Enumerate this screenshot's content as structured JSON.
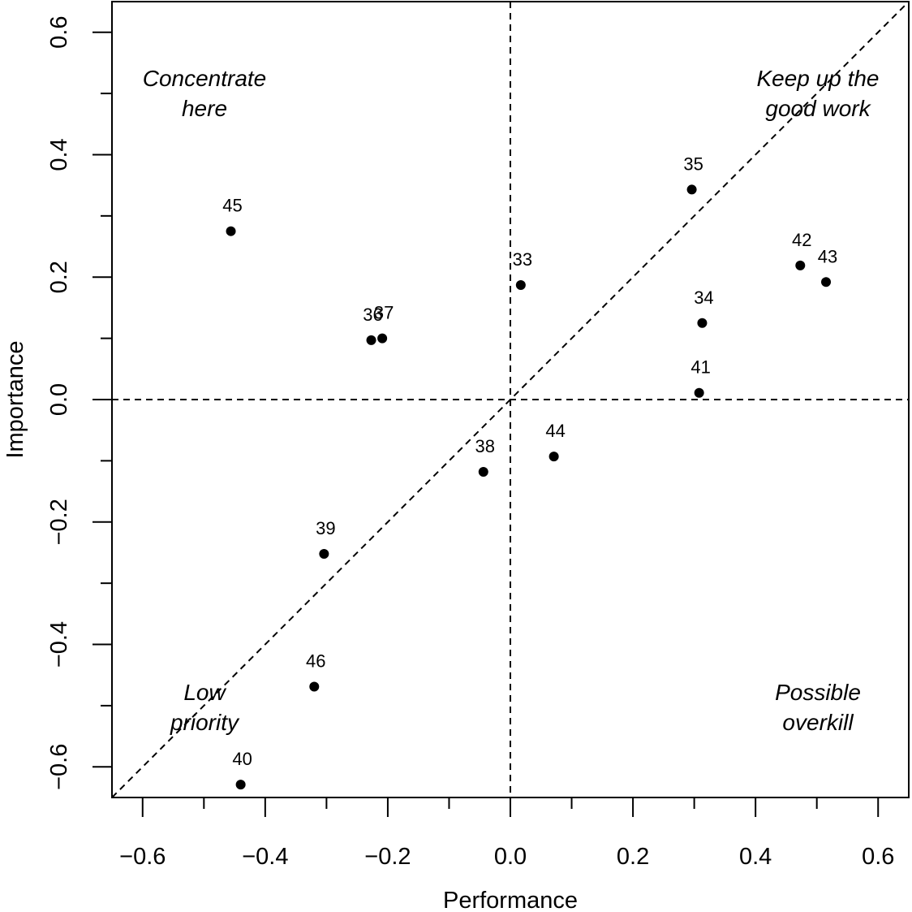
{
  "chart_data": {
    "type": "scatter",
    "x_label": "Performance",
    "y_label": "Importance",
    "point_labels": [
      "33",
      "34",
      "35",
      "36",
      "37",
      "38",
      "39",
      "40",
      "41",
      "42",
      "43",
      "44",
      "45",
      "46"
    ],
    "x": [
      0.017,
      0.313,
      0.296,
      -0.227,
      -0.209,
      -0.044,
      -0.304,
      -0.44,
      0.308,
      0.473,
      0.515,
      0.071,
      -0.456,
      -0.32
    ],
    "values": [
      0.187,
      0.125,
      0.343,
      0.097,
      0.1,
      -0.118,
      -0.252,
      -0.629,
      0.011,
      0.219,
      0.192,
      -0.093,
      0.275,
      -0.469
    ],
    "color": "#000000",
    "xlim": [
      -0.65,
      0.65
    ],
    "ylim": [
      -0.65,
      0.65
    ],
    "xticks": [
      {
        "value": -0.6,
        "label": "−0.6"
      },
      {
        "value": -0.4,
        "label": "−0.4"
      },
      {
        "value": -0.2,
        "label": "−0.2"
      },
      {
        "value": 0,
        "label": "0.0"
      },
      0.2,
      0.4,
      0.6
    ],
    "yticks": [
      {
        "value": -0.6,
        "label": "−0.6"
      },
      {
        "value": -0.4,
        "label": "−0.4"
      },
      {
        "value": -0.2,
        "label": "−0.2"
      },
      {
        "value": 0,
        "label": "0.0"
      },
      0.2,
      0.4,
      0.6
    ],
    "xminor_ticks": [
      -0.5,
      -0.3,
      -0.1,
      0.1,
      0.3,
      0.5
    ],
    "yminor_ticks": [
      -0.5,
      -0.3,
      -0.1,
      0.1,
      0.3,
      0.5
    ],
    "hline": 0,
    "vline": 0,
    "diagonal": true,
    "quadrants": {
      "top_left": [
        "Concentrate",
        "here"
      ],
      "top_right": [
        "Keep up the",
        "good work"
      ],
      "bottom_left": [
        "Low",
        "priority"
      ],
      "bottom_right": [
        "Possible",
        "overkill"
      ]
    }
  }
}
